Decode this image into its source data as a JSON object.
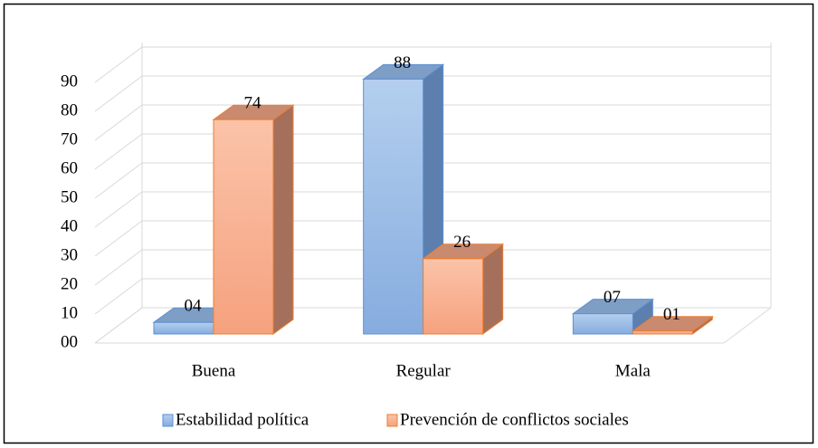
{
  "chart_data": {
    "type": "bar3d",
    "categories": [
      "Buena",
      "Regular",
      "Mala"
    ],
    "series": [
      {
        "name": "Estabilidad política",
        "color": "#8fb4e3",
        "values": [
          4,
          88,
          7
        ],
        "value_labels": [
          "04",
          "88",
          "07"
        ]
      },
      {
        "name": "Prevención de conflictos sociales",
        "color": "#f7ab88",
        "values": [
          74,
          26,
          1
        ],
        "value_labels": [
          "74",
          "26",
          "01"
        ]
      }
    ],
    "ylim": [
      0,
      90
    ],
    "yticks": [
      {
        "value": 0,
        "label": "00"
      },
      10,
      20,
      30,
      40,
      50,
      60,
      70,
      80,
      90
    ],
    "grid": true,
    "legend": "bottom"
  }
}
